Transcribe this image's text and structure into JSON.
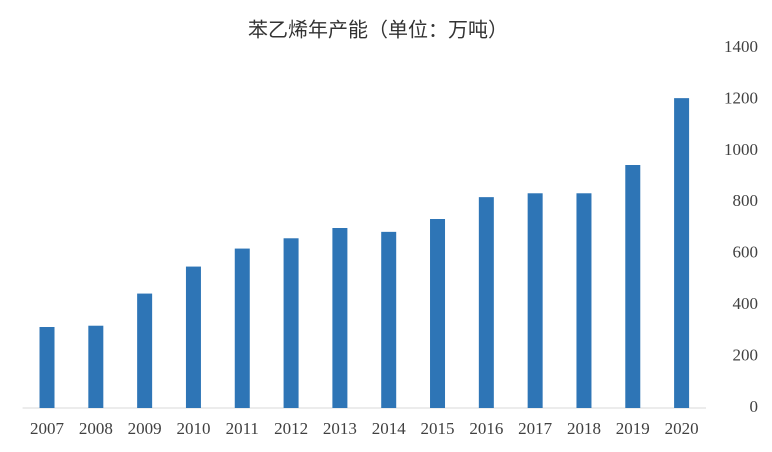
{
  "chart_data": {
    "type": "bar",
    "title": "苯乙烯年产能（单位：万吨）",
    "categories": [
      "2007",
      "2008",
      "2009",
      "2010",
      "2011",
      "2012",
      "2013",
      "2014",
      "2015",
      "2016",
      "2017",
      "2018",
      "2019",
      "2020"
    ],
    "values": [
      315,
      320,
      445,
      550,
      620,
      660,
      700,
      685,
      735,
      820,
      835,
      835,
      945,
      1205
    ],
    "color": "#2e75b6",
    "ylim": [
      0,
      1400
    ],
    "yticks": [
      0,
      200,
      400,
      600,
      800,
      1000,
      1200,
      1400
    ],
    "y_axis_side": "right",
    "grid": false
  }
}
